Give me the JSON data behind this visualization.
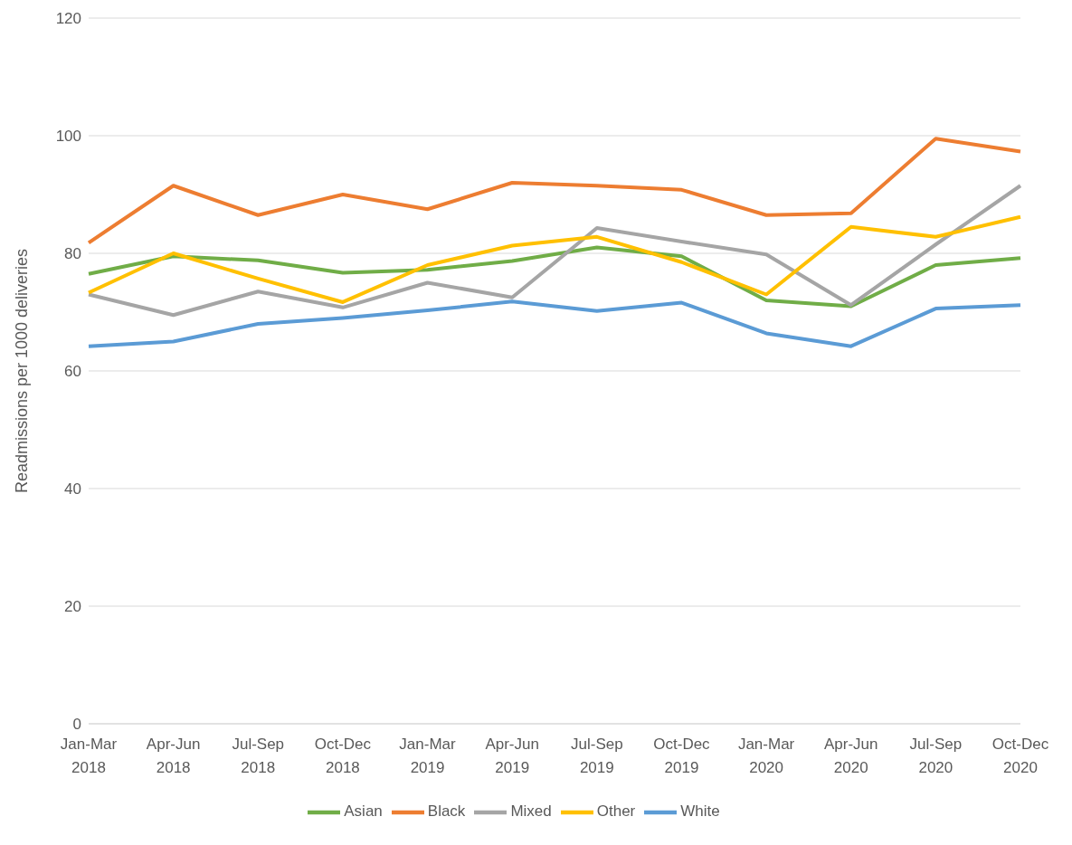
{
  "chart_data": {
    "type": "line",
    "ylabel": "Readmissions per 1000 deliveries",
    "categories": [
      "Jan-Mar 2018",
      "Apr-Jun 2018",
      "Jul-Sep 2018",
      "Oct-Dec 2018",
      "Jan-Mar 2019",
      "Apr-Jun 2019",
      "Jul-Sep 2019",
      "Oct-Dec 2019",
      "Jan-Mar 2020",
      "Apr-Jun 2020",
      "Jul-Sep 2020",
      "Oct-Dec 2020"
    ],
    "series": [
      {
        "name": "Asian",
        "color": "#70ad47",
        "values": [
          76.5,
          79.5,
          78.8,
          76.7,
          77.2,
          78.7,
          81,
          79.5,
          72,
          71,
          78,
          79.2
        ]
      },
      {
        "name": "Black",
        "color": "#ed7d31",
        "values": [
          81.8,
          91.5,
          86.5,
          90,
          87.5,
          92,
          91.5,
          90.8,
          86.5,
          86.8,
          99.5,
          97.3
        ]
      },
      {
        "name": "Mixed",
        "color": "#a5a5a5",
        "values": [
          73,
          69.5,
          73.5,
          70.8,
          75,
          72.5,
          84.3,
          82,
          79.8,
          71.2,
          81.5,
          91.5
        ]
      },
      {
        "name": "Other",
        "color": "#ffc000",
        "values": [
          73.3,
          80,
          75.7,
          71.7,
          78,
          81.3,
          82.8,
          78.5,
          73,
          84.5,
          82.8,
          86.2
        ]
      },
      {
        "name": "White",
        "color": "#5b9bd5",
        "values": [
          64.2,
          65,
          68,
          69,
          70.3,
          71.8,
          70.2,
          71.6,
          66.4,
          64.2,
          70.6,
          71.2
        ]
      }
    ],
    "ylim": [
      0,
      120
    ],
    "yticks": [
      0,
      20,
      40,
      60,
      80,
      100,
      120
    ],
    "grid": "y",
    "legend": "bottom",
    "marker": "none",
    "line_style": "solid"
  }
}
